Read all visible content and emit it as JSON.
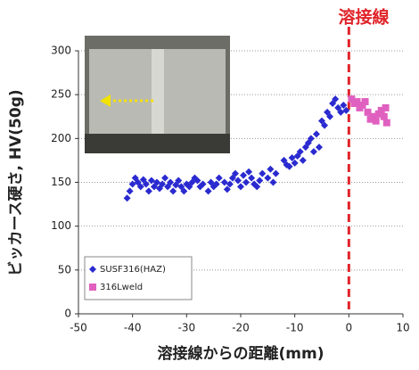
{
  "chart_data": {
    "type": "scatter",
    "xlabel": "溶接線からの距離(mm)",
    "ylabel": "ビッカース硬さ, HV(50g)",
    "annotation": {
      "text": "溶接線",
      "x": 0,
      "color": "#e0242a"
    },
    "xlim": [
      -50,
      10
    ],
    "xticks": [
      -50,
      -40,
      -30,
      -20,
      -10,
      0,
      10
    ],
    "ylim": [
      0,
      300
    ],
    "yticks": [
      0,
      50,
      100,
      150,
      200,
      250,
      300
    ],
    "grid": true,
    "legend": "lower left",
    "series": [
      {
        "name": "SUSF316(HAZ)",
        "color": "#2a2ad0",
        "marker": "diamond",
        "x": [
          -41,
          -40.5,
          -40,
          -39.5,
          -39,
          -38.5,
          -38,
          -37.5,
          -37,
          -36.5,
          -36,
          -35.5,
          -35,
          -34.5,
          -34,
          -33.5,
          -33,
          -32.5,
          -32,
          -31.5,
          -31,
          -30.5,
          -30,
          -29.5,
          -29,
          -28.5,
          -28,
          -27.5,
          -27,
          -26,
          -25.5,
          -25,
          -24.5,
          -24,
          -23,
          -22.5,
          -22,
          -21.5,
          -21,
          -20.5,
          -20,
          -19.5,
          -19,
          -18.5,
          -18,
          -17.5,
          -17,
          -16.5,
          -16,
          -15,
          -14.5,
          -14,
          -13.5,
          -12,
          -11.5,
          -11,
          -10.5,
          -10,
          -9.5,
          -9,
          -8.5,
          -8,
          -7.5,
          -7,
          -6.5,
          -6,
          -5.5,
          -5,
          -4.5,
          -4,
          -3.5,
          -3,
          -2.5,
          -2,
          -1.5,
          -1,
          -0.5
        ],
        "values": [
          132,
          140,
          148,
          155,
          150,
          145,
          153,
          148,
          140,
          152,
          145,
          150,
          143,
          148,
          155,
          145,
          150,
          140,
          147,
          152,
          145,
          140,
          148,
          145,
          150,
          155,
          152,
          145,
          148,
          140,
          150,
          145,
          148,
          155,
          150,
          142,
          148,
          155,
          160,
          152,
          145,
          158,
          150,
          162,
          155,
          148,
          145,
          152,
          160,
          155,
          165,
          150,
          160,
          175,
          170,
          168,
          178,
          172,
          180,
          185,
          175,
          190,
          195,
          200,
          185,
          205,
          190,
          220,
          215,
          230,
          225,
          240,
          245,
          235,
          230,
          238,
          232
        ]
      },
      {
        "name": "316Lweld",
        "color": "#e060c0",
        "marker": "square",
        "x": [
          0.5,
          1,
          1.5,
          2,
          2.5,
          3,
          3.5,
          4,
          4.5,
          5,
          5.5,
          6,
          6.5,
          7,
          6.8
        ],
        "values": [
          245,
          240,
          242,
          235,
          238,
          242,
          230,
          222,
          225,
          220,
          228,
          232,
          225,
          218,
          235
        ]
      }
    ]
  }
}
